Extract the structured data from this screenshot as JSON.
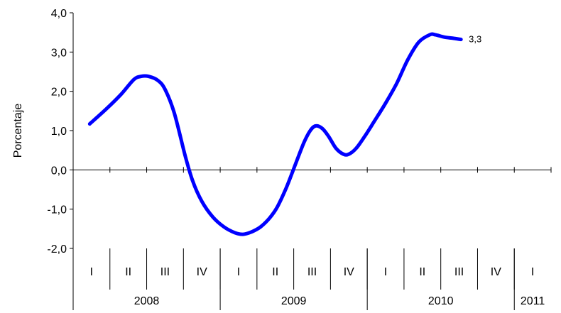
{
  "chart_data": {
    "type": "line",
    "title": "",
    "ylabel": "Porcentaje",
    "xlabel": "",
    "ylim": [
      -2.0,
      4.0
    ],
    "yticks": [
      {
        "value": -2.0,
        "label": "-2,0"
      },
      {
        "value": -1.0,
        "label": "-1,0"
      },
      {
        "value": 0.0,
        "label": "0,0"
      },
      {
        "value": 1.0,
        "label": "1,0"
      },
      {
        "value": 2.0,
        "label": "2,0"
      },
      {
        "value": 3.0,
        "label": "3,0"
      },
      {
        "value": 4.0,
        "label": "4,0"
      }
    ],
    "quarters": [
      "I",
      "II",
      "III",
      "IV",
      "I",
      "II",
      "III",
      "IV",
      "I",
      "II",
      "III",
      "IV",
      "I"
    ],
    "years": [
      {
        "label": "2008",
        "quarters": 4
      },
      {
        "label": "2009",
        "quarters": 4
      },
      {
        "label": "2010",
        "quarters": 4
      },
      {
        "label": "2011",
        "quarters": 1
      }
    ],
    "grid": false,
    "legend": "none",
    "series": [
      {
        "color": "#0000ff",
        "end_label": "3,3",
        "points": [
          {
            "x": 0.45,
            "y": 1.17
          },
          {
            "x": 0.9,
            "y": 1.55
          },
          {
            "x": 1.3,
            "y": 1.92
          },
          {
            "x": 1.65,
            "y": 2.3
          },
          {
            "x": 1.85,
            "y": 2.38
          },
          {
            "x": 2.05,
            "y": 2.38
          },
          {
            "x": 2.3,
            "y": 2.28
          },
          {
            "x": 2.5,
            "y": 2.05
          },
          {
            "x": 2.75,
            "y": 1.45
          },
          {
            "x": 3.05,
            "y": 0.35
          },
          {
            "x": 3.25,
            "y": -0.28
          },
          {
            "x": 3.5,
            "y": -0.8
          },
          {
            "x": 3.8,
            "y": -1.2
          },
          {
            "x": 4.1,
            "y": -1.45
          },
          {
            "x": 4.4,
            "y": -1.6
          },
          {
            "x": 4.62,
            "y": -1.64
          },
          {
            "x": 4.85,
            "y": -1.58
          },
          {
            "x": 5.1,
            "y": -1.45
          },
          {
            "x": 5.35,
            "y": -1.22
          },
          {
            "x": 5.55,
            "y": -0.95
          },
          {
            "x": 5.8,
            "y": -0.45
          },
          {
            "x": 6.05,
            "y": 0.15
          },
          {
            "x": 6.28,
            "y": 0.7
          },
          {
            "x": 6.45,
            "y": 1.0
          },
          {
            "x": 6.6,
            "y": 1.12
          },
          {
            "x": 6.78,
            "y": 1.05
          },
          {
            "x": 6.95,
            "y": 0.85
          },
          {
            "x": 7.15,
            "y": 0.55
          },
          {
            "x": 7.35,
            "y": 0.4
          },
          {
            "x": 7.5,
            "y": 0.4
          },
          {
            "x": 7.7,
            "y": 0.55
          },
          {
            "x": 7.95,
            "y": 0.88
          },
          {
            "x": 8.2,
            "y": 1.25
          },
          {
            "x": 8.5,
            "y": 1.7
          },
          {
            "x": 8.8,
            "y": 2.2
          },
          {
            "x": 9.1,
            "y": 2.8
          },
          {
            "x": 9.4,
            "y": 3.25
          },
          {
            "x": 9.7,
            "y": 3.44
          },
          {
            "x": 9.85,
            "y": 3.44
          },
          {
            "x": 10.1,
            "y": 3.38
          },
          {
            "x": 10.35,
            "y": 3.35
          },
          {
            "x": 10.55,
            "y": 3.32
          }
        ]
      }
    ]
  }
}
